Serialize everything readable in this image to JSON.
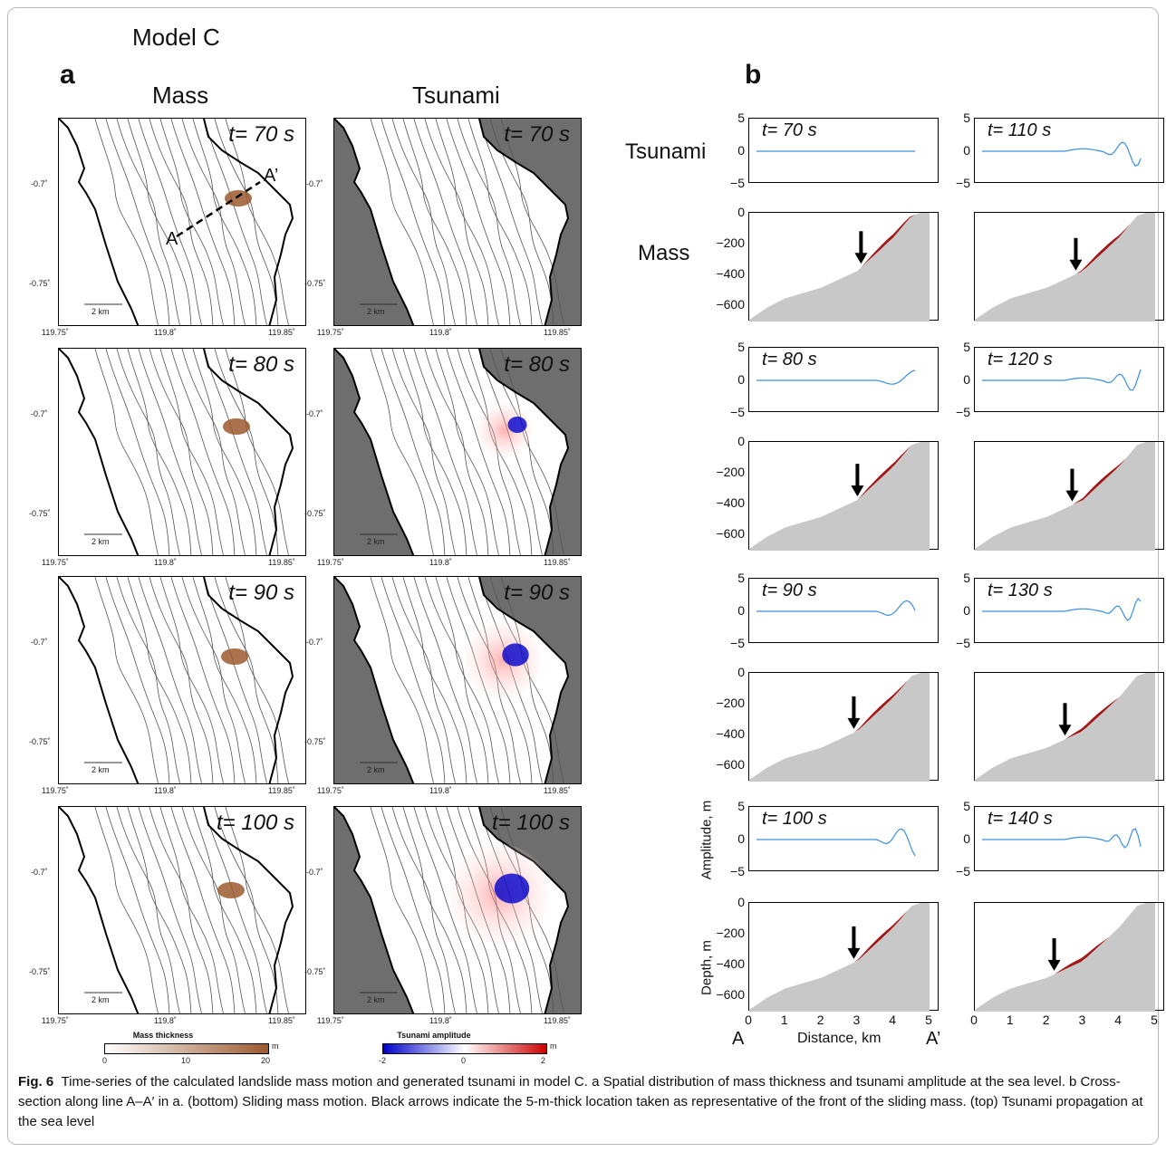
{
  "figure": {
    "model_title": "Model C",
    "panel_a": {
      "label": "a",
      "col_mass": "Mass",
      "col_tsunami": "Tsunami",
      "times": [
        "t= 70 s",
        "t= 80 s",
        "t= 90 s",
        "t= 100 s"
      ],
      "y_ticks": [
        "-0.7˚",
        "-0.75˚"
      ],
      "x_ticks": [
        "119.75˚",
        "119.8˚",
        "119.85˚"
      ],
      "scale_bar": "2 km",
      "section_a": "A",
      "section_a_prime": "A’",
      "colorbar_mass": {
        "title": "Mass thickness",
        "unit": "m",
        "ticks": [
          "0",
          "10",
          "20"
        ],
        "color": "#9b5a2e"
      },
      "colorbar_tsunami": {
        "title": "Tsunami amplitude",
        "unit": "m",
        "ticks": [
          "-2",
          "0",
          "2"
        ],
        "neg_color": "#0000cc",
        "pos_color": "#cc0000"
      }
    },
    "panel_b": {
      "label": "b",
      "row_tsunami": "Tsunami",
      "row_mass": "Mass",
      "times_left": [
        "t= 70 s",
        "t= 80 s",
        "t= 90 s",
        "t= 100 s"
      ],
      "times_right": [
        "t= 110 s",
        "t= 120 s",
        "t= 130 s",
        "t= 140 s"
      ],
      "amp_ticks": [
        "5",
        "0",
        "−5"
      ],
      "depth_ticks": [
        "0",
        "−200",
        "−400",
        "−600"
      ],
      "x_ticks": [
        "0",
        "1",
        "2",
        "3",
        "4",
        "5"
      ],
      "ylabel_amp": "Amplitude, m",
      "ylabel_depth": "Depth, m",
      "xlabel": "Distance, km",
      "end_a": "A",
      "end_a_prime": "A’",
      "slope_color": "#c8c8c8",
      "mass_color": "#a01818",
      "wave_color": "#3a8fe0"
    }
  },
  "chart_data": {
    "type": "line",
    "title": "",
    "xlabel": "Distance, km",
    "ylabel": "Amplitude, m / Depth, m",
    "xlim": [
      0,
      5
    ],
    "ylim_amplitude": [
      -5,
      5
    ],
    "ylim_depth": [
      -700,
      0
    ],
    "mass_front_km": {
      "70": 3.1,
      "80": 3.0,
      "90": 2.9,
      "100": 2.9,
      "110": 2.8,
      "120": 2.7,
      "130": 2.5,
      "140": 2.2
    }
  },
  "caption": {
    "fig_label": "Fig. 6",
    "text": "Time-series of the calculated landslide mass motion and generated tsunami in model C. a Spatial distribution of mass thickness and tsunami amplitude at the sea level. b Cross-section along line A–A′ in a. (bottom) Sliding mass motion. Black arrows indicate the 5-m-thick location taken as representative of the front of the sliding mass. (top) Tsunami propagation at the sea level"
  }
}
